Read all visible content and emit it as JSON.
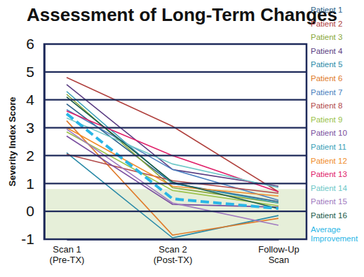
{
  "chart_data": {
    "type": "line",
    "title": "Assessment of Long-Term Changes",
    "y_label": "Severity Index Score",
    "categories": [
      "Scan 1\n(Pre-TX)",
      "Scan 2\n(Post-TX)",
      "Follow-Up\nScan"
    ],
    "ylim": [
      -1,
      6
    ],
    "yticks": [
      -1,
      0,
      1,
      2,
      3,
      4,
      5,
      6
    ],
    "grid": true,
    "legend": "right",
    "shaded_range": [
      -1,
      0.8
    ],
    "series": [
      {
        "name": "Patient 1",
        "color": "#2c5f8a",
        "values": [
          3.85,
          1.0,
          0.35
        ]
      },
      {
        "name": "Patient 2",
        "color": "#b0413e",
        "values": [
          4.8,
          3.05,
          0.7
        ]
      },
      {
        "name": "Patient 3",
        "color": "#8aa83a",
        "values": [
          4.2,
          0.85,
          0.3
        ]
      },
      {
        "name": "Patient 4",
        "color": "#5a3d82",
        "values": [
          4.55,
          1.5,
          0.9
        ]
      },
      {
        "name": "Patient 5",
        "color": "#2a8aa8",
        "values": [
          2.1,
          -0.95,
          -0.15
        ]
      },
      {
        "name": "Patient 6",
        "color": "#e07b2a",
        "values": [
          3.25,
          -0.85,
          -0.25
        ]
      },
      {
        "name": "Patient 7",
        "color": "#4a7fc0",
        "values": [
          3.65,
          1.5,
          0.4
        ]
      },
      {
        "name": "Patient 8",
        "color": "#b24a4a",
        "values": [
          2.05,
          1.1,
          0.65
        ]
      },
      {
        "name": "Patient 9",
        "color": "#9bc24a",
        "values": [
          2.85,
          0.75,
          0.2
        ]
      },
      {
        "name": "Patient 10",
        "color": "#7a4fa0",
        "values": [
          2.7,
          0.25,
          0.15
        ]
      },
      {
        "name": "Patient 11",
        "color": "#3aa0b8",
        "values": [
          4.3,
          1.0,
          0.3
        ]
      },
      {
        "name": "Patient 12",
        "color": "#f08c2a",
        "values": [
          3.0,
          0.9,
          0.55
        ]
      },
      {
        "name": "Patient 13",
        "color": "#e0206a",
        "values": [
          3.6,
          2.0,
          0.7
        ]
      },
      {
        "name": "Patient 14",
        "color": "#6ec8c8",
        "values": [
          3.35,
          1.7,
          0.85
        ]
      },
      {
        "name": "Patient 15",
        "color": "#a07ac0",
        "values": [
          2.95,
          0.3,
          -0.5
        ]
      },
      {
        "name": "Patient 16",
        "color": "#1a5a4a",
        "values": [
          4.1,
          1.05,
          0.1
        ]
      },
      {
        "name": "Average Improvement",
        "color": "#29b6e6",
        "line_style": "dashed",
        "values": [
          3.5,
          0.45,
          0.1
        ]
      }
    ]
  }
}
